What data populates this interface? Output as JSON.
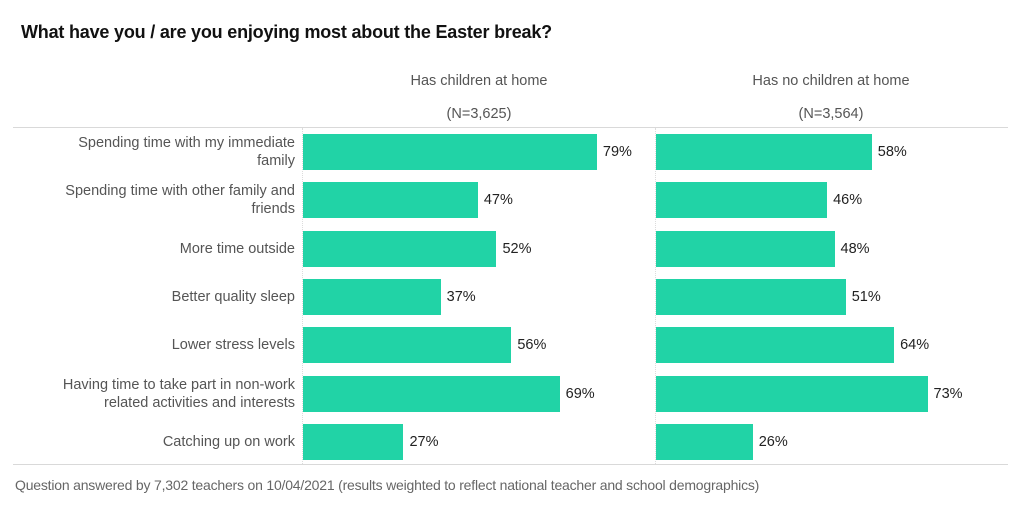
{
  "chart_data": {
    "type": "bar",
    "orientation": "horizontal",
    "title": "What have you / are you enjoying most about the Easter break?",
    "categories": [
      "Spending time with my immediate family",
      "Spending time with other family and friends",
      "More time outside",
      "Better quality sleep",
      "Lower stress levels",
      "Having time to take part in non-work related activities and interests",
      "Catching up on work"
    ],
    "category_lines": [
      [
        "Spending time with my immediate",
        "family"
      ],
      [
        "Spending time with other family and",
        "friends"
      ],
      [
        "More time outside"
      ],
      [
        "Better quality sleep"
      ],
      [
        "Lower stress levels"
      ],
      [
        "Having time to take part in non-work",
        "related activities and interests"
      ],
      [
        "Catching up on work"
      ]
    ],
    "series": [
      {
        "name": "Has children at home",
        "n_label": "(N=3,625)",
        "values": [
          79,
          47,
          52,
          37,
          56,
          69,
          27
        ],
        "labels": [
          "79%",
          "47%",
          "52%",
          "37%",
          "56%",
          "69%",
          "27%"
        ]
      },
      {
        "name": "Has no children at home",
        "n_label": "(N=3,564)",
        "values": [
          58,
          46,
          48,
          51,
          64,
          73,
          26
        ],
        "labels": [
          "58%",
          "46%",
          "48%",
          "51%",
          "64%",
          "73%",
          "26%"
        ]
      }
    ],
    "xlim": [
      0,
      100
    ],
    "unit": "%",
    "bar_color": "#21d3a6",
    "grid": false,
    "legend": "none",
    "layout": "small-multiples side-by-side"
  },
  "footnote": "Question answered by 7,302 teachers on 10/04/2021 (results weighted to reflect national teacher and school demographics)"
}
